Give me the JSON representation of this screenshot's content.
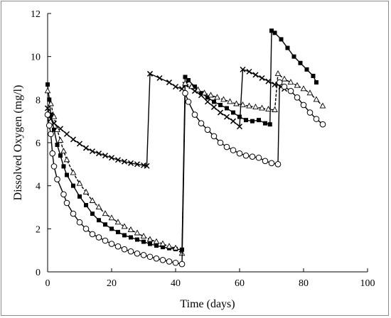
{
  "chart_data": {
    "type": "line",
    "title": "",
    "xlabel": "Time (days)",
    "ylabel": "Dissolved Oxygen (mg/l)",
    "xlim": [
      0,
      100
    ],
    "ylim": [
      0,
      12
    ],
    "xticks": [
      0,
      20,
      40,
      60,
      80,
      100
    ],
    "yticks": [
      0,
      2,
      4,
      6,
      8,
      10,
      12
    ],
    "grid": false,
    "legend": "none",
    "series": [
      {
        "marker": "x",
        "line": "solid",
        "color": "#000000",
        "points": [
          [
            0,
            7.6
          ],
          [
            1,
            7.1
          ],
          [
            2,
            6.9
          ],
          [
            4,
            6.65
          ],
          [
            6,
            6.4
          ],
          [
            8,
            6.15
          ],
          [
            10,
            5.95
          ],
          [
            12,
            5.75
          ],
          [
            14,
            5.6
          ],
          [
            16,
            5.5
          ],
          [
            18,
            5.4
          ],
          [
            20,
            5.3
          ],
          [
            22,
            5.2
          ],
          [
            24,
            5.12
          ],
          [
            26,
            5.05
          ],
          [
            28,
            5.0
          ],
          [
            30,
            4.95
          ],
          [
            31,
            4.92
          ],
          [
            32,
            9.2
          ],
          [
            35,
            9.0
          ],
          [
            38,
            8.8
          ],
          [
            40,
            8.6
          ],
          [
            42,
            8.5
          ],
          [
            43,
            8.7
          ],
          [
            46,
            8.4
          ],
          [
            48,
            8.2
          ],
          [
            50,
            7.9
          ],
          [
            52,
            7.65
          ],
          [
            54,
            7.4
          ],
          [
            56,
            7.2
          ],
          [
            58,
            7.0
          ],
          [
            60,
            6.75
          ],
          [
            61,
            9.4
          ],
          [
            63,
            9.3
          ],
          [
            65,
            9.15
          ],
          [
            67,
            9.0
          ],
          [
            69,
            8.85
          ],
          [
            71,
            8.7
          ],
          [
            72,
            8.7
          ],
          [
            73,
            8.6
          ],
          [
            74,
            8.5
          ]
        ]
      },
      {
        "marker": "square",
        "line": "solid",
        "color": "#000000",
        "points": [
          [
            0,
            8.7
          ],
          [
            0.5,
            8.0
          ],
          [
            1,
            7.3
          ],
          [
            2,
            6.6
          ],
          [
            3,
            5.9
          ],
          [
            4,
            5.4
          ],
          [
            5,
            4.9
          ],
          [
            6,
            4.5
          ],
          [
            8,
            4.0
          ],
          [
            10,
            3.5
          ],
          [
            12,
            3.1
          ],
          [
            14,
            2.7
          ],
          [
            16,
            2.4
          ],
          [
            18,
            2.2
          ],
          [
            20,
            2.0
          ],
          [
            22,
            1.85
          ],
          [
            24,
            1.7
          ],
          [
            26,
            1.6
          ],
          [
            28,
            1.5
          ],
          [
            30,
            1.4
          ],
          [
            32,
            1.3
          ],
          [
            34,
            1.22
          ],
          [
            36,
            1.15
          ],
          [
            38,
            1.1
          ],
          [
            40,
            1.06
          ],
          [
            42,
            1.03
          ],
          [
            43,
            9.05
          ],
          [
            44,
            8.9
          ],
          [
            46,
            8.6
          ],
          [
            48,
            8.3
          ],
          [
            50,
            8.1
          ],
          [
            52,
            7.9
          ],
          [
            54,
            7.75
          ],
          [
            56,
            7.6
          ],
          [
            58,
            7.4
          ],
          [
            60,
            7.2
          ],
          [
            62,
            7.05
          ],
          [
            64,
            7.0
          ],
          [
            66,
            7.05
          ],
          [
            68,
            6.9
          ],
          [
            69.5,
            6.85
          ],
          [
            70,
            11.2
          ],
          [
            71,
            11.1
          ],
          [
            73,
            10.8
          ],
          [
            75,
            10.4
          ],
          [
            77,
            10.0
          ],
          [
            79,
            9.7
          ],
          [
            81,
            9.4
          ],
          [
            83,
            9.1
          ],
          [
            84,
            8.8
          ]
        ]
      },
      {
        "marker": "triangle",
        "line": "dashed",
        "color": "#000000",
        "points": [
          [
            0,
            8.4
          ],
          [
            1,
            7.8
          ],
          [
            2,
            7.2
          ],
          [
            3,
            6.6
          ],
          [
            4,
            6.1
          ],
          [
            5,
            5.6
          ],
          [
            6,
            5.2
          ],
          [
            8,
            4.6
          ],
          [
            10,
            4.1
          ],
          [
            12,
            3.7
          ],
          [
            14,
            3.3
          ],
          [
            16,
            3.0
          ],
          [
            18,
            2.7
          ],
          [
            20,
            2.5
          ],
          [
            22,
            2.3
          ],
          [
            24,
            2.1
          ],
          [
            26,
            1.95
          ],
          [
            28,
            1.8
          ],
          [
            30,
            1.65
          ],
          [
            32,
            1.5
          ],
          [
            34,
            1.4
          ],
          [
            36,
            1.3
          ],
          [
            38,
            1.18
          ],
          [
            40,
            1.1
          ],
          [
            42,
            0.85
          ],
          [
            43,
            8.75
          ],
          [
            45,
            8.6
          ],
          [
            47,
            8.45
          ],
          [
            49,
            8.3
          ],
          [
            51,
            8.2
          ],
          [
            53,
            8.1
          ],
          [
            55,
            8.0
          ],
          [
            57,
            7.9
          ],
          [
            59,
            7.8
          ],
          [
            61,
            7.75
          ],
          [
            63,
            7.7
          ],
          [
            65,
            7.65
          ],
          [
            67,
            7.6
          ],
          [
            69,
            7.55
          ],
          [
            71,
            7.52
          ],
          [
            72,
            9.2
          ],
          [
            74,
            8.95
          ],
          [
            76,
            8.8
          ],
          [
            78,
            8.65
          ],
          [
            80,
            8.5
          ],
          [
            82,
            8.3
          ],
          [
            84,
            8.0
          ],
          [
            86,
            7.7
          ]
        ]
      },
      {
        "marker": "circle",
        "line": "solid",
        "color": "#000000",
        "points": [
          [
            0,
            7.3
          ],
          [
            0.5,
            6.8
          ],
          [
            1,
            6.4
          ],
          [
            1.5,
            5.5
          ],
          [
            2,
            4.9
          ],
          [
            3,
            4.3
          ],
          [
            5,
            3.6
          ],
          [
            6,
            3.2
          ],
          [
            8,
            2.7
          ],
          [
            10,
            2.3
          ],
          [
            12,
            2.0
          ],
          [
            14,
            1.75
          ],
          [
            16,
            1.6
          ],
          [
            18,
            1.45
          ],
          [
            20,
            1.3
          ],
          [
            22,
            1.18
          ],
          [
            24,
            1.05
          ],
          [
            26,
            0.95
          ],
          [
            28,
            0.85
          ],
          [
            30,
            0.78
          ],
          [
            32,
            0.7
          ],
          [
            34,
            0.62
          ],
          [
            36,
            0.55
          ],
          [
            38,
            0.48
          ],
          [
            40,
            0.42
          ],
          [
            42,
            0.36
          ],
          [
            43,
            8.3
          ],
          [
            44,
            7.9
          ],
          [
            46,
            7.3
          ],
          [
            48,
            6.9
          ],
          [
            50,
            6.6
          ],
          [
            52,
            6.3
          ],
          [
            54,
            6.0
          ],
          [
            56,
            5.8
          ],
          [
            58,
            5.65
          ],
          [
            60,
            5.5
          ],
          [
            62,
            5.4
          ],
          [
            64,
            5.35
          ],
          [
            66,
            5.3
          ],
          [
            68,
            5.15
          ],
          [
            70,
            5.05
          ],
          [
            72,
            5.0
          ],
          [
            72.5,
            8.8
          ],
          [
            74,
            8.6
          ],
          [
            76,
            8.4
          ],
          [
            78,
            8.1
          ],
          [
            80,
            7.75
          ],
          [
            82,
            7.4
          ],
          [
            84,
            7.1
          ],
          [
            86,
            6.85
          ]
        ]
      }
    ]
  }
}
